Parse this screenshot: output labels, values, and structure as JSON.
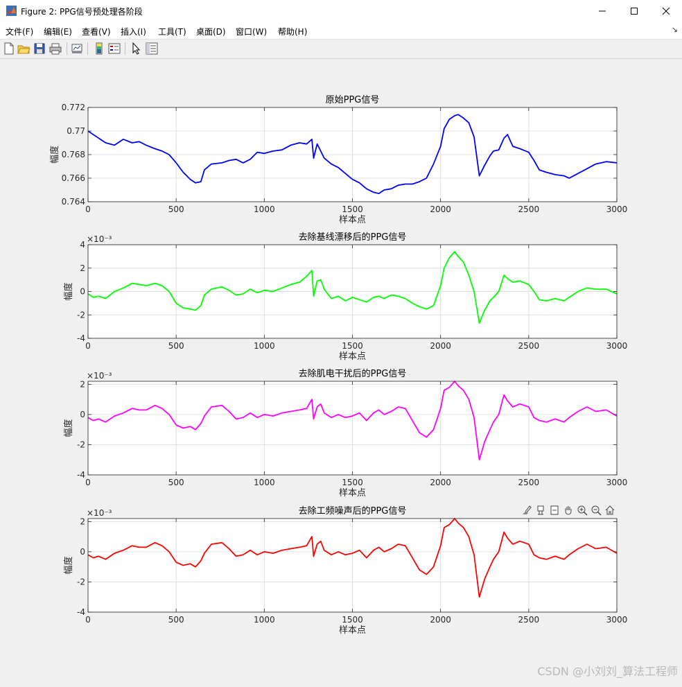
{
  "window": {
    "title": "Figure 2: PPG信号预处理各阶段",
    "controls": {
      "minimize": "—",
      "maximize": "☐",
      "close": "✕"
    }
  },
  "menubar": {
    "items": [
      {
        "label": "文件(F)"
      },
      {
        "label": "编辑(E)"
      },
      {
        "label": "查看(V)"
      },
      {
        "label": "插入(I)"
      },
      {
        "label": "工具(T)"
      },
      {
        "label": "桌面(D)"
      },
      {
        "label": "窗口(W)"
      },
      {
        "label": "帮助(H)"
      }
    ]
  },
  "toolbar": {
    "buttons": [
      "new-figure-icon",
      "open-file-icon",
      "save-icon",
      "print-icon",
      "link-plot-icon",
      "insert-colorbar-icon",
      "insert-legend-icon",
      "edit-plot-icon",
      "property-inspector-icon"
    ]
  },
  "axes_toolbar": {
    "buttons": [
      "brush-icon",
      "data-tips-icon",
      "rotate-icon",
      "pan-icon",
      "zoom-in-icon",
      "zoom-out-icon",
      "home-icon"
    ]
  },
  "watermark": "CSDN @小刘刘_算法工程师",
  "chart_data": [
    {
      "type": "line",
      "title": "原始PPG信号",
      "xlabel": "样本点",
      "ylabel": "幅度",
      "xlim": [
        0,
        3000
      ],
      "ylim": [
        0.764,
        0.772
      ],
      "xticks": [
        0,
        500,
        1000,
        1500,
        2000,
        2500,
        3000
      ],
      "yticks": [
        "0.764",
        "0.766",
        "0.768",
        "0.77",
        "0.772"
      ],
      "ytick_values": [
        0.764,
        0.766,
        0.768,
        0.77,
        0.772
      ],
      "exponent": "",
      "color": "#0000ff",
      "grid": true,
      "x": [
        0,
        30,
        60,
        100,
        150,
        200,
        250,
        290,
        330,
        380,
        420,
        460,
        500,
        540,
        580,
        610,
        640,
        660,
        700,
        760,
        800,
        840,
        880,
        920,
        960,
        1000,
        1050,
        1100,
        1150,
        1200,
        1240,
        1270,
        1280,
        1300,
        1320,
        1340,
        1380,
        1420,
        1460,
        1500,
        1540,
        1580,
        1620,
        1650,
        1680,
        1720,
        1760,
        1800,
        1840,
        1880,
        1920,
        1960,
        2000,
        2020,
        2050,
        2080,
        2100,
        2130,
        2160,
        2190,
        2220,
        2250,
        2280,
        2300,
        2330,
        2360,
        2380,
        2410,
        2450,
        2500,
        2530,
        2560,
        2600,
        2650,
        2700,
        2730,
        2780,
        2830,
        2880,
        2940,
        3000
      ],
      "values": [
        0.77,
        0.7697,
        0.7694,
        0.769,
        0.7688,
        0.7693,
        0.769,
        0.7691,
        0.7688,
        0.7685,
        0.7683,
        0.768,
        0.7673,
        0.7665,
        0.7659,
        0.7656,
        0.7657,
        0.7667,
        0.7672,
        0.7673,
        0.7675,
        0.7676,
        0.7673,
        0.7676,
        0.7682,
        0.7681,
        0.7683,
        0.7684,
        0.7688,
        0.769,
        0.7689,
        0.7693,
        0.7677,
        0.7689,
        0.7683,
        0.7677,
        0.7672,
        0.7669,
        0.7664,
        0.7659,
        0.7656,
        0.7651,
        0.7648,
        0.7647,
        0.765,
        0.7651,
        0.7654,
        0.7655,
        0.7655,
        0.7657,
        0.766,
        0.7672,
        0.7687,
        0.7702,
        0.771,
        0.7713,
        0.7714,
        0.7711,
        0.7707,
        0.7695,
        0.7662,
        0.7671,
        0.7679,
        0.7683,
        0.7684,
        0.7694,
        0.7697,
        0.7687,
        0.7685,
        0.7682,
        0.7675,
        0.7667,
        0.7665,
        0.7663,
        0.7662,
        0.766,
        0.7664,
        0.7668,
        0.7672,
        0.7674,
        0.7673
      ]
    },
    {
      "type": "line",
      "title": "去除基线漂移后的PPG信号",
      "xlabel": "样本点",
      "ylabel": "幅度",
      "xlim": [
        0,
        3000
      ],
      "ylim": [
        -4,
        4
      ],
      "xticks": [
        0,
        500,
        1000,
        1500,
        2000,
        2500,
        3000
      ],
      "yticks": [
        "-4",
        "-2",
        "0",
        "2",
        "4"
      ],
      "ytick_values": [
        -4,
        -2,
        0,
        2,
        4
      ],
      "exponent": "×10⁻³",
      "color": "#00ff00",
      "grid": true,
      "x": [
        0,
        30,
        60,
        100,
        150,
        200,
        250,
        290,
        330,
        380,
        420,
        460,
        500,
        540,
        580,
        610,
        640,
        660,
        700,
        760,
        800,
        840,
        880,
        920,
        960,
        1000,
        1050,
        1100,
        1150,
        1200,
        1240,
        1270,
        1280,
        1300,
        1320,
        1340,
        1380,
        1420,
        1460,
        1500,
        1540,
        1580,
        1620,
        1650,
        1680,
        1720,
        1760,
        1800,
        1840,
        1880,
        1920,
        1960,
        2000,
        2020,
        2050,
        2080,
        2100,
        2130,
        2160,
        2190,
        2220,
        2250,
        2280,
        2300,
        2330,
        2360,
        2380,
        2410,
        2450,
        2500,
        2530,
        2560,
        2600,
        2650,
        2700,
        2730,
        2780,
        2830,
        2880,
        2940,
        3000
      ],
      "values": [
        -0.2,
        -0.5,
        -0.4,
        -0.6,
        0.0,
        0.3,
        0.7,
        0.6,
        0.5,
        0.7,
        0.5,
        0.0,
        -1.0,
        -1.4,
        -1.5,
        -1.6,
        -1.2,
        -0.3,
        0.2,
        0.4,
        0.1,
        -0.3,
        -0.2,
        0.2,
        -0.1,
        0.1,
        0.0,
        0.3,
        0.6,
        0.8,
        1.3,
        1.8,
        -0.4,
        0.9,
        1.0,
        0.2,
        -0.6,
        -0.4,
        -0.8,
        -0.5,
        -0.7,
        -0.9,
        -0.5,
        -0.4,
        -0.6,
        -0.3,
        -0.4,
        -0.6,
        -1.0,
        -1.3,
        -1.5,
        -1.2,
        0.5,
        2.0,
        2.9,
        3.4,
        3.0,
        2.5,
        1.4,
        0.0,
        -2.7,
        -1.6,
        -0.8,
        -0.5,
        0.0,
        1.4,
        1.1,
        0.8,
        0.9,
        0.6,
        0.0,
        -0.7,
        -0.8,
        -0.6,
        -0.8,
        -0.5,
        0.0,
        0.3,
        0.2,
        0.2,
        -0.2
      ]
    },
    {
      "type": "line",
      "title": "去除肌电干扰后的PPG信号",
      "xlabel": "样本点",
      "ylabel": "幅度",
      "xlim": [
        0,
        3000
      ],
      "ylim": [
        -4,
        2.2
      ],
      "xticks": [
        0,
        500,
        1000,
        1500,
        2000,
        2500,
        3000
      ],
      "yticks": [
        "-4",
        "-2",
        "0",
        "2"
      ],
      "ytick_values": [
        -4,
        -2,
        0,
        2
      ],
      "exponent": "×10⁻³",
      "color": "#ff00ff",
      "grid": true,
      "x": [
        0,
        30,
        60,
        100,
        150,
        200,
        250,
        290,
        330,
        380,
        420,
        460,
        500,
        540,
        580,
        610,
        640,
        660,
        700,
        760,
        800,
        840,
        880,
        920,
        960,
        1000,
        1050,
        1100,
        1150,
        1200,
        1240,
        1270,
        1280,
        1300,
        1320,
        1340,
        1380,
        1420,
        1460,
        1500,
        1540,
        1580,
        1620,
        1650,
        1680,
        1720,
        1760,
        1800,
        1840,
        1880,
        1920,
        1960,
        2000,
        2020,
        2050,
        2080,
        2100,
        2130,
        2160,
        2190,
        2220,
        2250,
        2280,
        2300,
        2330,
        2360,
        2380,
        2410,
        2450,
        2500,
        2530,
        2560,
        2600,
        2650,
        2700,
        2730,
        2780,
        2830,
        2880,
        2940,
        3000
      ],
      "values": [
        -0.2,
        -0.4,
        -0.3,
        -0.5,
        -0.1,
        0.1,
        0.4,
        0.3,
        0.3,
        0.6,
        0.4,
        0.0,
        -0.7,
        -0.9,
        -0.8,
        -1.0,
        -0.6,
        -0.1,
        0.5,
        0.6,
        0.2,
        -0.3,
        -0.2,
        0.1,
        -0.2,
        0.0,
        -0.1,
        0.1,
        0.2,
        0.3,
        0.4,
        1.0,
        -0.3,
        0.5,
        0.7,
        0.1,
        -0.2,
        0.0,
        -0.2,
        -0.1,
        0.1,
        -0.4,
        0.1,
        0.3,
        0.0,
        0.2,
        0.5,
        0.4,
        -0.4,
        -1.2,
        -1.5,
        -1.0,
        0.4,
        1.6,
        1.8,
        2.2,
        1.9,
        1.6,
        1.0,
        -0.2,
        -3.0,
        -1.8,
        -1.0,
        -0.5,
        0.0,
        1.3,
        0.9,
        0.5,
        0.7,
        0.5,
        -0.2,
        -0.4,
        -0.5,
        -0.3,
        -0.5,
        -0.2,
        0.2,
        0.5,
        0.2,
        0.3,
        -0.1
      ]
    },
    {
      "type": "line",
      "title": "去除工频噪声后的PPG信号",
      "xlabel": "样本点",
      "ylabel": "幅度",
      "xlim": [
        0,
        3000
      ],
      "ylim": [
        -4,
        2.2
      ],
      "xticks": [
        0,
        500,
        1000,
        1500,
        2000,
        2500,
        3000
      ],
      "yticks": [
        "-4",
        "-2",
        "0",
        "2"
      ],
      "ytick_values": [
        -4,
        -2,
        0,
        2
      ],
      "exponent": "×10⁻³",
      "color": "#ff0000",
      "grid": true,
      "x": [
        0,
        30,
        60,
        100,
        150,
        200,
        250,
        290,
        330,
        380,
        420,
        460,
        500,
        540,
        580,
        610,
        640,
        660,
        700,
        760,
        800,
        840,
        880,
        920,
        960,
        1000,
        1050,
        1100,
        1150,
        1200,
        1240,
        1270,
        1280,
        1300,
        1320,
        1340,
        1380,
        1420,
        1460,
        1500,
        1540,
        1580,
        1620,
        1650,
        1680,
        1720,
        1760,
        1800,
        1840,
        1880,
        1920,
        1960,
        2000,
        2020,
        2050,
        2080,
        2100,
        2130,
        2160,
        2190,
        2220,
        2250,
        2280,
        2300,
        2330,
        2360,
        2380,
        2410,
        2450,
        2500,
        2530,
        2560,
        2600,
        2650,
        2700,
        2730,
        2780,
        2830,
        2880,
        2940,
        3000
      ],
      "values": [
        -0.2,
        -0.4,
        -0.3,
        -0.5,
        -0.1,
        0.1,
        0.4,
        0.3,
        0.3,
        0.6,
        0.4,
        0.0,
        -0.7,
        -0.9,
        -0.8,
        -1.0,
        -0.6,
        -0.1,
        0.5,
        0.6,
        0.2,
        -0.3,
        -0.2,
        0.1,
        -0.2,
        0.0,
        -0.1,
        0.1,
        0.2,
        0.3,
        0.4,
        1.0,
        -0.3,
        0.5,
        0.7,
        0.1,
        -0.2,
        0.0,
        -0.2,
        -0.1,
        0.1,
        -0.4,
        0.1,
        0.3,
        0.0,
        0.2,
        0.5,
        0.4,
        -0.4,
        -1.2,
        -1.5,
        -1.0,
        0.4,
        1.6,
        1.8,
        2.2,
        1.9,
        1.6,
        1.0,
        -0.2,
        -3.0,
        -1.8,
        -1.0,
        -0.5,
        0.0,
        1.3,
        0.9,
        0.5,
        0.7,
        0.5,
        -0.2,
        -0.4,
        -0.5,
        -0.3,
        -0.5,
        -0.2,
        0.2,
        0.5,
        0.2,
        0.3,
        -0.1
      ]
    }
  ]
}
